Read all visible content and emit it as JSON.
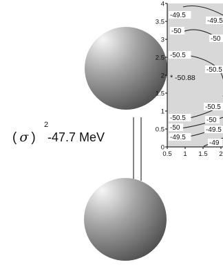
{
  "diagram": {
    "state_label": "(σ)",
    "state_label_open": "(",
    "state_label_sigma": "σ",
    "state_label_close": ")",
    "state_exponent": "2",
    "energy_label": "-47.7 MeV"
  },
  "contour_inset": {
    "x_axis": {
      "range": [
        0.5,
        2
      ],
      "tick_labels": [
        "0.5",
        "1",
        "1.5",
        "2"
      ]
    },
    "y_axis": {
      "range": [
        0,
        4
      ],
      "tick_labels": [
        "0",
        "0.5",
        "1",
        "1.5",
        "2",
        "2.5",
        "3",
        "3.5",
        "4"
      ]
    },
    "minimum": {
      "marker": "*",
      "value": "-50.88"
    },
    "contour_labels": [
      {
        "text": "-49.5"
      },
      {
        "text": "-49.5"
      },
      {
        "text": "-50"
      },
      {
        "text": "-50"
      },
      {
        "text": "-50.5"
      },
      {
        "text": "-50.5"
      },
      {
        "text": "-50.5"
      },
      {
        "text": "-50.5"
      },
      {
        "text": "-50"
      },
      {
        "text": "-50"
      },
      {
        "text": "-49.5"
      },
      {
        "text": "-49.5"
      },
      {
        "text": "-49"
      }
    ],
    "colors": {
      "background": "#d8d8d8",
      "contour_line": "#222222"
    }
  }
}
